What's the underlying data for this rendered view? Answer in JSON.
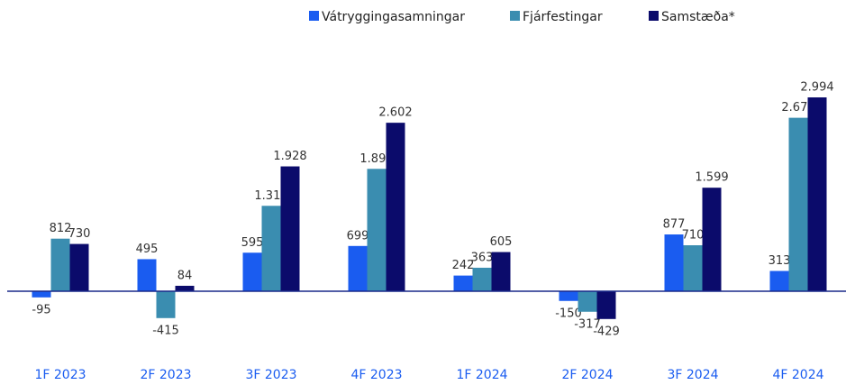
{
  "chart_data": {
    "type": "bar",
    "categories": [
      "1F 2023",
      "2F 2023",
      "3F 2023",
      "4F 2023",
      "1F 2024",
      "2F 2024",
      "3F 2024",
      "4F 2024"
    ],
    "series": [
      {
        "name": "Vátryggingasamningar",
        "color": "#1a5cf0",
        "values": [
          -95,
          495,
          595,
          699,
          242,
          -150,
          877,
          313
        ],
        "value_labels": [
          "-95",
          "495",
          "595",
          "699",
          "242",
          "-150",
          "877",
          "313"
        ]
      },
      {
        "name": "Fjárfestingar",
        "color": "#3a8db0",
        "values": [
          812,
          -415,
          1319,
          1890,
          363,
          -317,
          710,
          2679
        ],
        "value_labels": [
          "812",
          "-415",
          "1.319",
          "1.890",
          "363",
          "-317",
          "710",
          "2.679"
        ]
      },
      {
        "name": "Samstæða*",
        "color": "#0b0b6b",
        "values": [
          730,
          84,
          1928,
          2602,
          605,
          -429,
          1599,
          2994
        ],
        "value_labels": [
          "730",
          "84",
          "1.928",
          "2.602",
          "605",
          "-429",
          "1.599",
          "2.994"
        ]
      }
    ],
    "legend": "top"
  }
}
